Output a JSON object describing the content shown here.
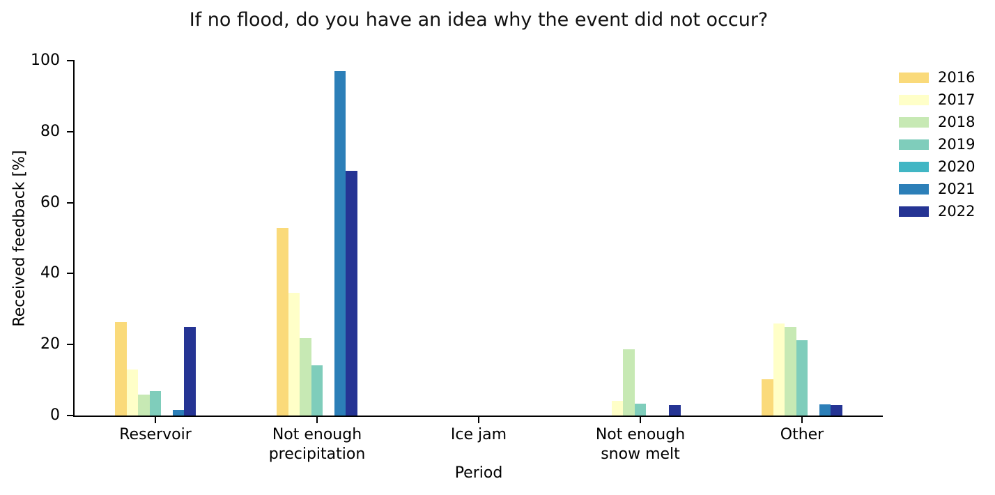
{
  "figure": {
    "background": "#ffffff",
    "text_color": "#000000",
    "axis_color": "#000000"
  },
  "chart_data": {
    "type": "bar",
    "title": "If no flood, do you have an idea why the event did not occur?",
    "xlabel": "Period",
    "ylabel": "Received feedback [%]",
    "ylim": [
      0,
      100
    ],
    "yticks": [
      0,
      20,
      40,
      60,
      80,
      100
    ],
    "grid": false,
    "legend_position": "outside-upper-right",
    "categories": [
      "Reservoir",
      "Not enough precipitation",
      "Ice jam",
      "Not enough snow melt",
      "Other"
    ],
    "category_tick_lines": [
      [
        "Reservoir"
      ],
      [
        "Not enough",
        "precipitation"
      ],
      [
        "Ice jam"
      ],
      [
        "Not enough",
        "snow melt"
      ],
      [
        "Other"
      ]
    ],
    "series": [
      {
        "name": "2016",
        "color": "#FADA7A",
        "values": [
          26.3,
          52.8,
          0,
          0,
          10.3
        ]
      },
      {
        "name": "2017",
        "color": "#FFFFC8",
        "values": [
          13.0,
          34.6,
          0,
          4.2,
          25.9
        ]
      },
      {
        "name": "2018",
        "color": "#C7E9B4",
        "values": [
          5.9,
          21.8,
          0,
          18.7,
          24.9
        ]
      },
      {
        "name": "2019",
        "color": "#7FCDBB",
        "values": [
          6.9,
          14.2,
          0,
          3.4,
          21.3
        ]
      },
      {
        "name": "2020",
        "color": "#41B6C4",
        "values": [
          0,
          0,
          0,
          0,
          0
        ]
      },
      {
        "name": "2021",
        "color": "#2C7FB8",
        "values": [
          1.6,
          97.0,
          0,
          0,
          3.2
        ]
      },
      {
        "name": "2022",
        "color": "#253494",
        "values": [
          25.0,
          68.9,
          0,
          3.0,
          3.0
        ]
      }
    ]
  }
}
